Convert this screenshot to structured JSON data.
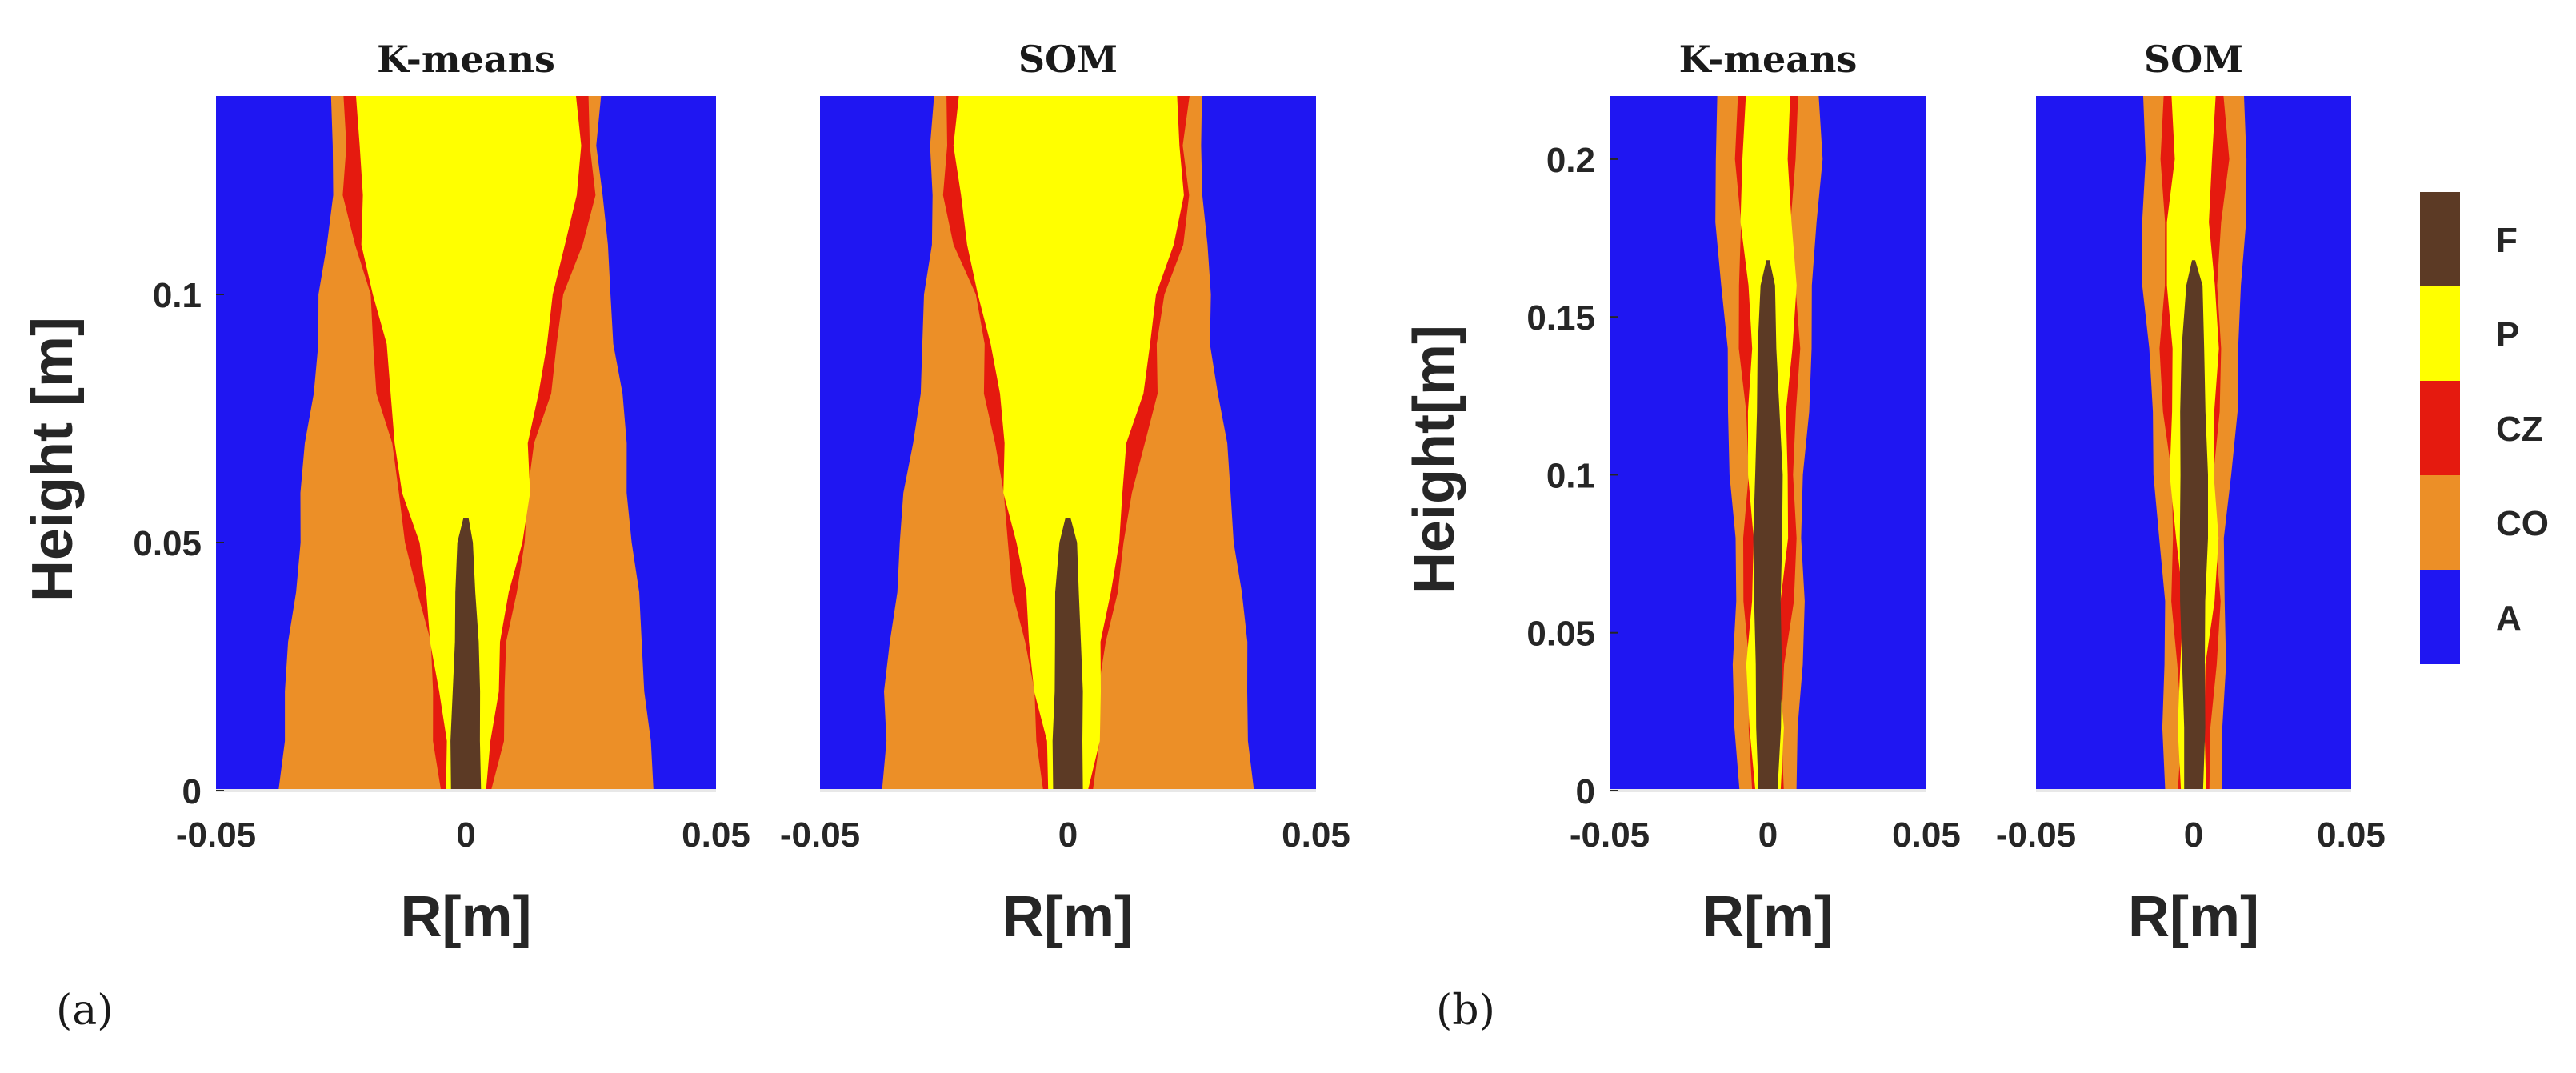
{
  "colors": {
    "F": "#5c3a25",
    "P": "#ffff00",
    "CZ": "#e51a0f",
    "CO": "#ec8f27",
    "A": "#1f16f2"
  },
  "legend": {
    "items": [
      {
        "key": "F",
        "label": "F"
      },
      {
        "key": "P",
        "label": "P"
      },
      {
        "key": "CZ",
        "label": "CZ"
      },
      {
        "key": "CO",
        "label": "CO"
      },
      {
        "key": "A",
        "label": "A"
      }
    ]
  },
  "panel_labels": {
    "a": "(a)",
    "b": "(b)"
  },
  "chart_data": [
    {
      "type": "heatmap",
      "panel": "a",
      "title": "K-means",
      "xlabel": "R[m]",
      "ylabel": "Height [m]",
      "xlim": [
        -0.05,
        0.05
      ],
      "ylim": [
        0,
        0.14
      ],
      "xticks": [
        "-0.05",
        "0",
        "0.05"
      ],
      "yticks": [
        {
          "v": 0,
          "t": "0"
        },
        {
          "v": 0.05,
          "t": "0.05"
        },
        {
          "v": 0.1,
          "t": "0.1"
        }
      ],
      "zones": {
        "F": {
          "y": [
            0,
            0.01,
            0.02,
            0.03,
            0.04,
            0.05,
            0.055
          ],
          "w": [
            0.003,
            0.003,
            0.0028,
            0.0026,
            0.0022,
            0.0015,
            0.0005
          ]
        },
        "P": {
          "y": [
            0,
            0.01,
            0.02,
            0.03,
            0.04,
            0.05,
            0.06,
            0.07,
            0.08,
            0.09,
            0.1,
            0.11,
            0.12,
            0.13,
            0.14
          ],
          "w": [
            0.004,
            0.005,
            0.006,
            0.007,
            0.0085,
            0.01,
            0.012,
            0.013,
            0.015,
            0.016,
            0.018,
            0.021,
            0.022,
            0.022,
            0.022
          ]
        },
        "CZ": {
          "y": [
            0,
            0.01,
            0.02,
            0.03,
            0.04,
            0.05,
            0.06,
            0.07,
            0.08,
            0.09,
            0.1,
            0.11,
            0.12,
            0.13,
            0.14
          ],
          "w": [
            0.005,
            0.0062,
            0.0073,
            0.0084,
            0.0098,
            0.0115,
            0.0135,
            0.0147,
            0.0167,
            0.0178,
            0.0198,
            0.0228,
            0.0245,
            0.0245,
            0.0245
          ]
        },
        "CO": {
          "y": [
            0,
            0.01,
            0.02,
            0.03,
            0.04,
            0.05,
            0.06,
            0.07,
            0.08,
            0.09,
            0.1,
            0.11,
            0.12,
            0.13,
            0.14
          ],
          "w": [
            0.0375,
            0.037,
            0.0365,
            0.0355,
            0.0345,
            0.0335,
            0.0325,
            0.0315,
            0.0305,
            0.0295,
            0.029,
            0.028,
            0.0275,
            0.027,
            0.027
          ]
        }
      }
    },
    {
      "type": "heatmap",
      "panel": "a",
      "title": "SOM",
      "xlabel": "R[m]",
      "ylabel": "",
      "xlim": [
        -0.05,
        0.05
      ],
      "ylim": [
        0,
        0.14
      ],
      "xticks": [
        "-0.05",
        "0",
        "0.05"
      ],
      "yticks": [],
      "zones": {
        "F": {
          "y": [
            0,
            0.01,
            0.02,
            0.03,
            0.04,
            0.05,
            0.055
          ],
          "w": [
            0.003,
            0.003,
            0.0028,
            0.0026,
            0.0022,
            0.0015,
            0.0005
          ]
        },
        "P": {
          "y": [
            0,
            0.01,
            0.02,
            0.03,
            0.04,
            0.05,
            0.06,
            0.07,
            0.08,
            0.09,
            0.1,
            0.11,
            0.12,
            0.13,
            0.14
          ],
          "w": [
            0.004,
            0.005,
            0.006,
            0.007,
            0.0085,
            0.01,
            0.012,
            0.013,
            0.015,
            0.016,
            0.018,
            0.021,
            0.022,
            0.022,
            0.022
          ]
        },
        "CZ": {
          "y": [
            0,
            0.01,
            0.02,
            0.03,
            0.04,
            0.05,
            0.06,
            0.07,
            0.08,
            0.09,
            0.1,
            0.11,
            0.12,
            0.13,
            0.14
          ],
          "w": [
            0.005,
            0.0062,
            0.0073,
            0.0084,
            0.0098,
            0.0115,
            0.0135,
            0.0147,
            0.0167,
            0.0178,
            0.0198,
            0.0228,
            0.0245,
            0.0245,
            0.0245
          ]
        },
        "CO": {
          "y": [
            0,
            0.01,
            0.02,
            0.03,
            0.04,
            0.05,
            0.06,
            0.07,
            0.08,
            0.09,
            0.1,
            0.11,
            0.12,
            0.13,
            0.14
          ],
          "w": [
            0.0375,
            0.037,
            0.0365,
            0.0355,
            0.0345,
            0.0335,
            0.0325,
            0.0315,
            0.0305,
            0.0295,
            0.029,
            0.028,
            0.0275,
            0.027,
            0.027
          ]
        }
      }
    },
    {
      "type": "heatmap",
      "panel": "b",
      "title": "K-means",
      "xlabel": "R[m]",
      "ylabel": "Height[m]",
      "xlim": [
        -0.05,
        0.05
      ],
      "ylim": [
        0,
        0.22
      ],
      "xticks": [
        "-0.05",
        "0",
        "0.05"
      ],
      "yticks": [
        {
          "v": 0,
          "t": "0"
        },
        {
          "v": 0.05,
          "t": "0.05"
        },
        {
          "v": 0.1,
          "t": "0.1"
        },
        {
          "v": 0.15,
          "t": "0.15"
        },
        {
          "v": 0.2,
          "t": "0.2"
        }
      ],
      "zones": {
        "F": {
          "y": [
            0,
            0.02,
            0.04,
            0.06,
            0.08,
            0.1,
            0.12,
            0.14,
            0.16,
            0.168
          ],
          "w": [
            0.003,
            0.0035,
            0.004,
            0.0042,
            0.0045,
            0.0045,
            0.004,
            0.0032,
            0.0022,
            0.0005
          ]
        },
        "P": {
          "y": [
            0,
            0.02,
            0.04,
            0.06,
            0.08,
            0.1,
            0.12,
            0.14,
            0.16,
            0.18,
            0.2,
            0.22
          ],
          "w": [
            0.004,
            0.0045,
            0.005,
            0.0055,
            0.006,
            0.0063,
            0.0066,
            0.0068,
            0.0068,
            0.007,
            0.007,
            0.007
          ]
        },
        "CZ": {
          "y": [
            0,
            0.02,
            0.04,
            0.06,
            0.08,
            0.1,
            0.12,
            0.14,
            0.16,
            0.18,
            0.2,
            0.22
          ],
          "w": [
            0.005,
            0.0056,
            0.0062,
            0.0068,
            0.0074,
            0.008,
            0.0085,
            0.0088,
            0.009,
            0.0093,
            0.0095,
            0.0095
          ]
        },
        "CO": {
          "y": [
            0,
            0.02,
            0.04,
            0.06,
            0.08,
            0.1,
            0.12,
            0.14,
            0.16,
            0.18,
            0.2,
            0.22
          ],
          "w": [
            0.009,
            0.0095,
            0.01,
            0.0105,
            0.011,
            0.012,
            0.013,
            0.014,
            0.015,
            0.0155,
            0.016,
            0.016
          ]
        }
      }
    },
    {
      "type": "heatmap",
      "panel": "b",
      "title": "SOM",
      "xlabel": "R[m]",
      "ylabel": "",
      "xlim": [
        -0.05,
        0.05
      ],
      "ylim": [
        0,
        0.22
      ],
      "xticks": [
        "-0.05",
        "0",
        "0.05"
      ],
      "yticks": [],
      "zones": {
        "F": {
          "y": [
            0,
            0.02,
            0.04,
            0.06,
            0.08,
            0.1,
            0.12,
            0.14,
            0.16,
            0.168
          ],
          "w": [
            0.003,
            0.0035,
            0.004,
            0.0042,
            0.0045,
            0.0045,
            0.004,
            0.0032,
            0.0022,
            0.0005
          ]
        },
        "P": {
          "y": [
            0,
            0.02,
            0.04,
            0.06,
            0.08,
            0.1,
            0.12,
            0.14,
            0.16,
            0.18,
            0.2,
            0.22
          ],
          "w": [
            0.004,
            0.0045,
            0.005,
            0.0055,
            0.006,
            0.0063,
            0.0066,
            0.0068,
            0.0068,
            0.007,
            0.007,
            0.007
          ]
        },
        "CZ": {
          "y": [
            0,
            0.02,
            0.04,
            0.06,
            0.08,
            0.1,
            0.12,
            0.14,
            0.16,
            0.18,
            0.2,
            0.22
          ],
          "w": [
            0.005,
            0.0056,
            0.0062,
            0.0068,
            0.0074,
            0.008,
            0.0085,
            0.0088,
            0.009,
            0.0093,
            0.0095,
            0.0095
          ]
        },
        "CO": {
          "y": [
            0,
            0.02,
            0.04,
            0.06,
            0.08,
            0.1,
            0.12,
            0.14,
            0.16,
            0.18,
            0.2,
            0.22
          ],
          "w": [
            0.009,
            0.0095,
            0.01,
            0.0105,
            0.011,
            0.012,
            0.013,
            0.014,
            0.015,
            0.0155,
            0.016,
            0.016
          ]
        }
      }
    }
  ]
}
